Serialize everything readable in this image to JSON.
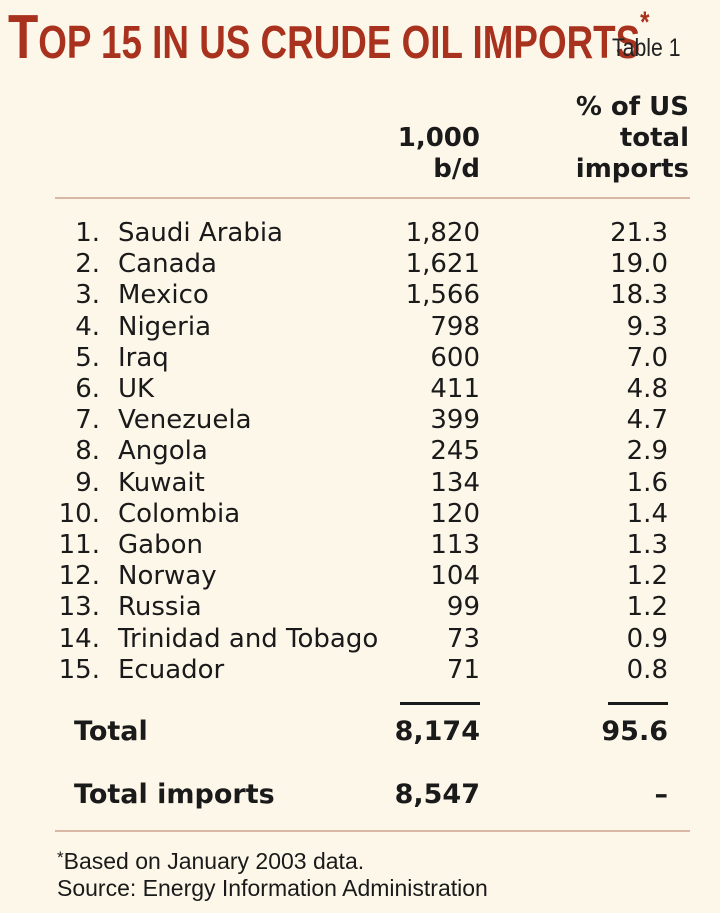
{
  "title": {
    "first_letter": "T",
    "rest": "OP 15 IN US CRUDE OIL IMPORTS",
    "marker": "*"
  },
  "table_label": "Table 1",
  "columns": {
    "volume": [
      "1,000",
      "b/d"
    ],
    "share": [
      "% of US",
      "total",
      "imports"
    ]
  },
  "rows": [
    {
      "rank": "1.",
      "country": "Saudi Arabia",
      "volume": "1,820",
      "share": "21.3"
    },
    {
      "rank": "2.",
      "country": "Canada",
      "volume": "1,621",
      "share": "19.0"
    },
    {
      "rank": "3.",
      "country": "Mexico",
      "volume": "1,566",
      "share": "18.3"
    },
    {
      "rank": "4.",
      "country": "Nigeria",
      "volume": "798",
      "share": "9.3"
    },
    {
      "rank": "5.",
      "country": "Iraq",
      "volume": "600",
      "share": "7.0"
    },
    {
      "rank": "6.",
      "country": "UK",
      "volume": "411",
      "share": "4.8"
    },
    {
      "rank": "7.",
      "country": "Venezuela",
      "volume": "399",
      "share": "4.7"
    },
    {
      "rank": "8.",
      "country": "Angola",
      "volume": "245",
      "share": "2.9"
    },
    {
      "rank": "9.",
      "country": "Kuwait",
      "volume": "134",
      "share": "1.6"
    },
    {
      "rank": "10.",
      "country": "Colombia",
      "volume": "120",
      "share": "1.4"
    },
    {
      "rank": "11.",
      "country": "Gabon",
      "volume": "113",
      "share": "1.3"
    },
    {
      "rank": "12.",
      "country": "Norway",
      "volume": "104",
      "share": "1.2"
    },
    {
      "rank": "13.",
      "country": "Russia",
      "volume": "99",
      "share": "1.2"
    },
    {
      "rank": "14.",
      "country": "Trinidad and Tobago",
      "volume": "73",
      "share": "0.9"
    },
    {
      "rank": "15.",
      "country": "Ecuador",
      "volume": "71",
      "share": "0.8"
    }
  ],
  "total": {
    "label": "Total",
    "volume": "8,174",
    "share": "95.6"
  },
  "total_imports": {
    "label": "Total imports",
    "volume": "8,547",
    "share": "–"
  },
  "footnotes": {
    "marker": "*",
    "note": "Based on January 2003 data.",
    "source": "Source: Energy Information Administration"
  }
}
